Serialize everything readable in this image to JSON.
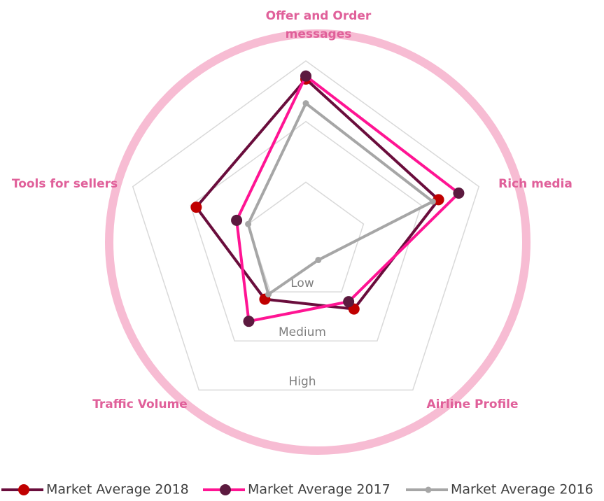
{
  "chart_data": {
    "type": "radar",
    "categories": [
      "Offer and Order messages",
      "Rich media",
      "Airline Profile",
      "Traffic Volume",
      "Tools for sellers"
    ],
    "series": [
      {
        "name": "Market Average 2018",
        "color": "#6a0d3c",
        "marker_color": "#c00000",
        "values": [
          2.7,
          2.3,
          1.35,
          1.15,
          1.9
        ]
      },
      {
        "name": "Market Average 2017",
        "color": "#ff1493",
        "marker_color": "#5c1a3f",
        "values": [
          2.75,
          2.65,
          1.2,
          1.6,
          1.2
        ]
      },
      {
        "name": "Market Average 2016",
        "color": "#a6a6a6",
        "marker_color": "#a6a6a6",
        "values": [
          2.3,
          2.2,
          0.35,
          1.05,
          1.0
        ]
      }
    ],
    "ylim": [
      0,
      3
    ],
    "yticks": [
      {
        "value": 1,
        "label": "Low"
      },
      {
        "value": 2,
        "label": "Medium"
      },
      {
        "value": 3,
        "label": "High"
      }
    ],
    "grid": true,
    "legend": "bottom"
  }
}
